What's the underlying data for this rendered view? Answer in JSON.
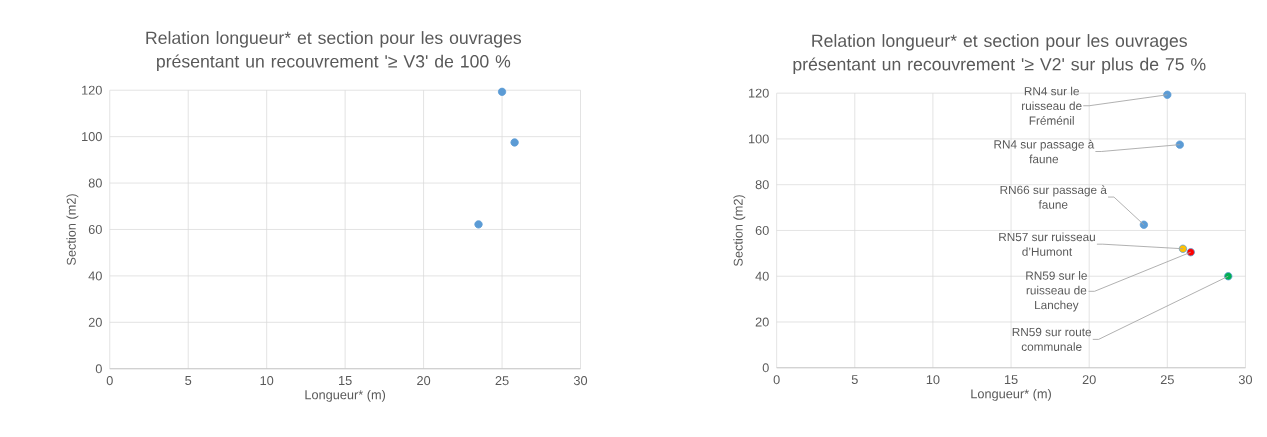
{
  "chart_data": [
    {
      "type": "scatter",
      "title": "Relation longueur* et section pour les ouvrages présentant un recouvrement '≥ V3' de 100 %",
      "xlabel": "Longueur* (m)",
      "ylabel": "Section (m2)",
      "x": [
        25.0,
        25.8,
        23.5
      ],
      "values": [
        119.3,
        97.5,
        62.2
      ],
      "color": "#5b9bd5",
      "marker": "circle",
      "grid": true,
      "xlim": [
        0,
        30
      ],
      "ylim": [
        0,
        120
      ],
      "xticks": [
        0,
        5,
        10,
        15,
        20,
        25,
        30
      ],
      "yticks": [
        0,
        20,
        40,
        60,
        80,
        100,
        120
      ]
    },
    {
      "type": "scatter",
      "title": "Relation longueur* et section pour les ouvrages présentant un recouvrement '≥ V2' sur plus de 75 %",
      "xlabel": "Longueur* (m)",
      "ylabel": "Section (m2)",
      "x": [
        25.0,
        25.8,
        23.5,
        26.0,
        26.5,
        28.9
      ],
      "values": [
        119.3,
        97.5,
        62.5,
        52.0,
        50.5,
        40.0
      ],
      "colors": [
        "#5b9bd5",
        "#5b9bd5",
        "#5b9bd5",
        "#ffc000",
        "#ff0000",
        "#00b050"
      ],
      "marker": "circle",
      "grid": true,
      "xlim": [
        0,
        30
      ],
      "ylim": [
        0,
        120
      ],
      "xticks": [
        0,
        5,
        10,
        15,
        20,
        25,
        30
      ],
      "yticks": [
        0,
        20,
        40,
        60,
        80,
        100,
        120
      ],
      "annotations": [
        {
          "text": "RN4 sur le ruisseau de Fréménil",
          "x": 25.0,
          "y": 119.3
        },
        {
          "text": "RN4 sur passage à faune",
          "x": 25.8,
          "y": 97.5
        },
        {
          "text": "RN66 sur passage à faune",
          "x": 23.5,
          "y": 62.5
        },
        {
          "text": "RN57 sur ruisseau d’Humont",
          "x": 26.0,
          "y": 52.0
        },
        {
          "text": "RN59 sur le ruisseau de Lanchey",
          "x": 26.5,
          "y": 50.5
        },
        {
          "text": "RN59 sur route communale",
          "x": 28.9,
          "y": 40.0
        }
      ]
    }
  ]
}
